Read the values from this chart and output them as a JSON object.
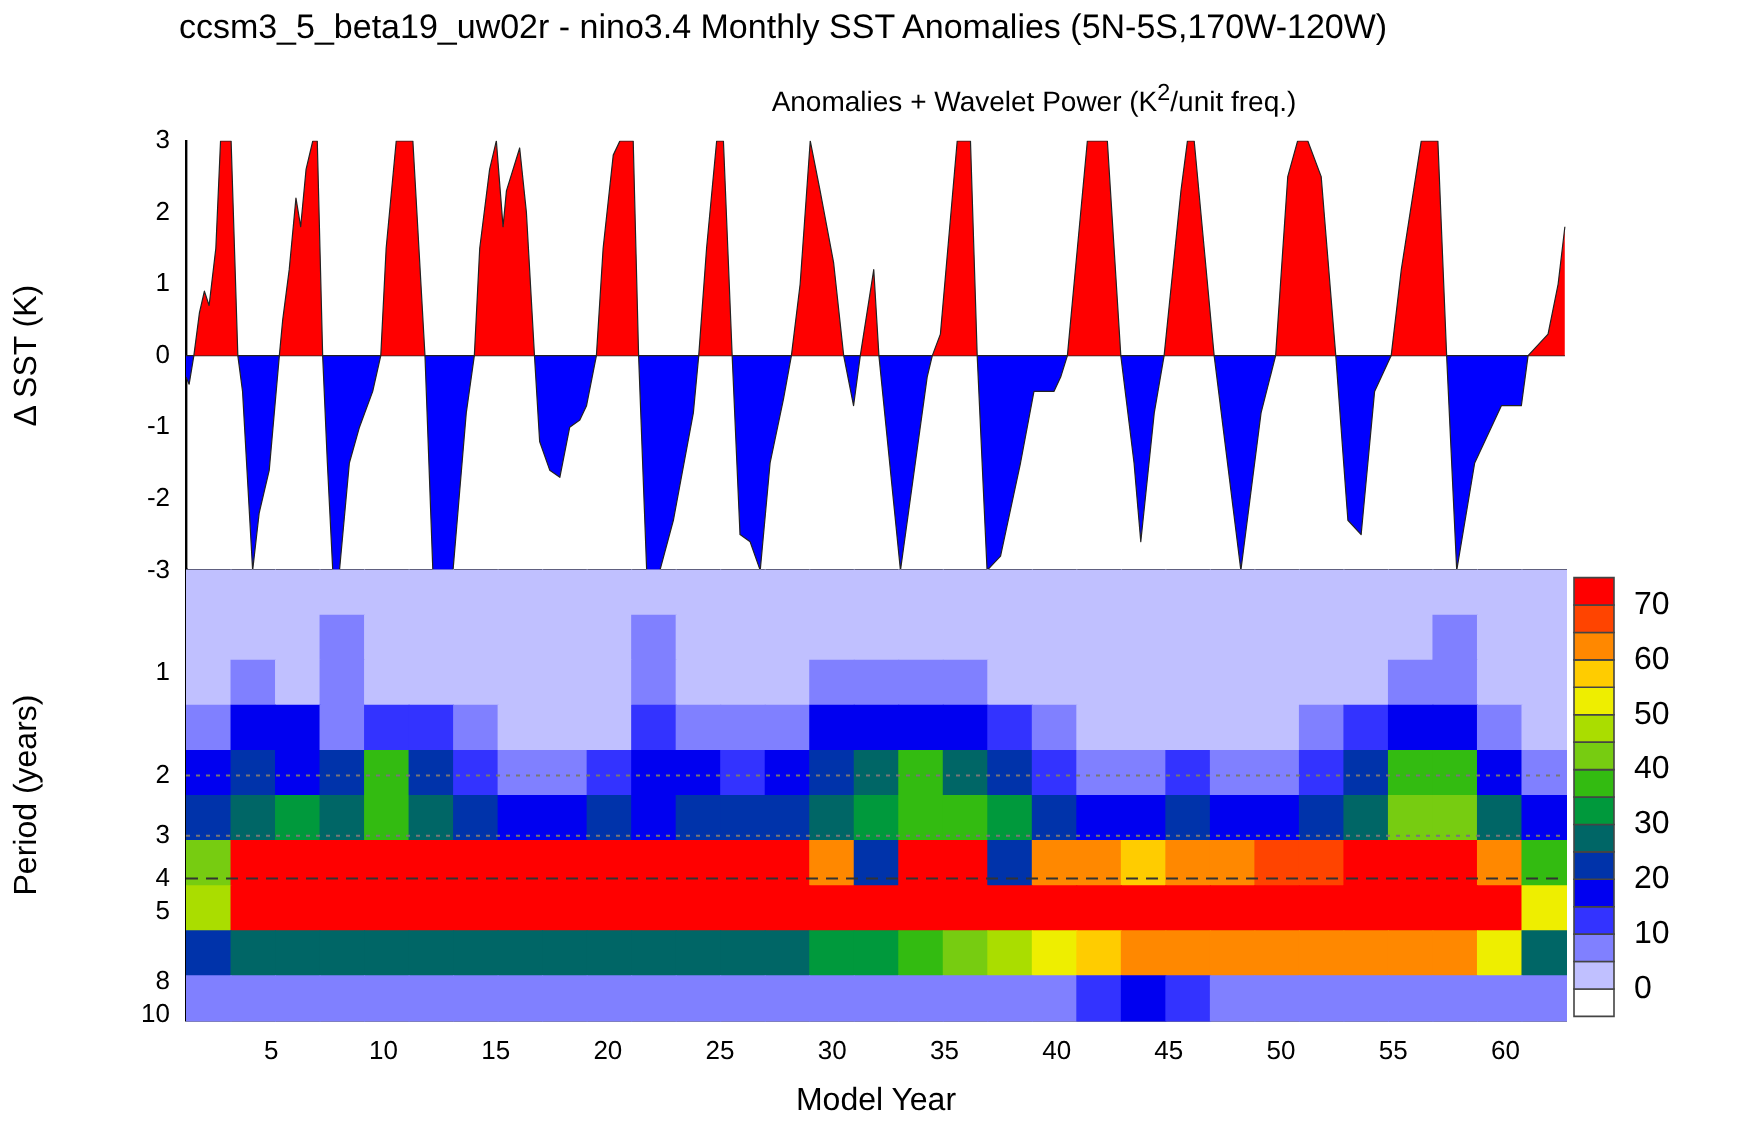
{
  "chart_data": [
    {
      "type": "area",
      "title": "ccsm3_5_beta19_uw02r - nino3.4 Monthly SST Anomalies (5N-5S,170W-120W)",
      "subtitle": "Anomalies + Wavelet Power (K$^{2}$/unit freq.)",
      "ylabel": "Δ SST (K)",
      "x": [
        1.2,
        1.34,
        1.55,
        1.8,
        2.02,
        2.23,
        2.53,
        2.74,
        3.21,
        3.51,
        3.72,
        4.17,
        4.46,
        4.91,
        5.36,
        5.51,
        5.8,
        6.1,
        6.31,
        6.55,
        6.85,
        7.05,
        7.29,
        7.5,
        7.74,
        8.04,
        8.48,
        8.93,
        9.52,
        9.88,
        10.12,
        10.57,
        11.31,
        11.85,
        12.2,
        13.1,
        13.69,
        14.05,
        14.29,
        14.73,
        15.03,
        15.33,
        15.48,
        16.07,
        16.37,
        16.73,
        16.96,
        17.41,
        17.86,
        18.3,
        18.75,
        19.05,
        19.49,
        19.79,
        20.24,
        20.54,
        21.13,
        21.37,
        21.73,
        22.32,
        22.92,
        23.81,
        24.05,
        24.4,
        24.85,
        25.15,
        25.54,
        25.89,
        26.34,
        26.79,
        27.23,
        27.83,
        28.18,
        28.57,
        29.02,
        29.46,
        30.06,
        30.51,
        30.95,
        31.25,
        31.85,
        32.08,
        33.04,
        34.23,
        34.46,
        34.82,
        35.57,
        36.16,
        36.46,
        36.9,
        37.5,
        38.39,
        38.99,
        39.88,
        40.18,
        40.48,
        41.37,
        42.26,
        42.86,
        43.45,
        43.75,
        44.35,
        44.79,
        45.54,
        45.83,
        46.13,
        47.02,
        48.21,
        49.11,
        49.76,
        50.3,
        50.74,
        51.19,
        51.79,
        52.44,
        52.98,
        53.57,
        54.17,
        54.91,
        55.36,
        56.25,
        56.99,
        57.38,
        57.83,
        58.63,
        59.82,
        60.71,
        61.01,
        61.31,
        61.9,
        62.35,
        62.65
      ],
      "series": [
        {
          "color": "#ff0000",
          "values": [
            0,
            0,
            0,
            0.6,
            0.9,
            0.7,
            1.5,
            3,
            3,
            0,
            0,
            0,
            0,
            0,
            0,
            0.5,
            1.2,
            2.2,
            1.8,
            2.6,
            3,
            3,
            0,
            0,
            0,
            0,
            0,
            0,
            0,
            0,
            1.5,
            3,
            3,
            0,
            0,
            0,
            0,
            0,
            1.5,
            2.6,
            3,
            1.8,
            2.3,
            2.9,
            2,
            0,
            0,
            0,
            0,
            0,
            0,
            0,
            0,
            1.5,
            2.8,
            3,
            3,
            0,
            0,
            0,
            0,
            0,
            0,
            1.5,
            3,
            3,
            0,
            0,
            0,
            0,
            0,
            0,
            0,
            1,
            3,
            2.3,
            1.3,
            0,
            0,
            0,
            1.2,
            0,
            0,
            0,
            0,
            0.3,
            3,
            3,
            0,
            0,
            0,
            0,
            0,
            0,
            0,
            0,
            3,
            3,
            0,
            0,
            0,
            0,
            0,
            2.3,
            3,
            3,
            0,
            0,
            0,
            0,
            2.5,
            3,
            3,
            2.5,
            0,
            0,
            0,
            0,
            0,
            1.2,
            3,
            3,
            0,
            0,
            0,
            0,
            0,
            0,
            0.1,
            0.3,
            1,
            1.8
          ]
        },
        {
          "color": "#0000ff",
          "values": [
            -0.3,
            -0.4,
            0,
            0,
            0,
            0,
            0,
            0,
            0,
            0,
            -0.5,
            -3,
            -2.2,
            -1.6,
            0,
            0,
            0,
            0,
            0,
            0,
            0,
            0,
            0,
            -1.5,
            -3,
            -3,
            -1.5,
            -1,
            -0.5,
            0,
            0,
            0,
            0,
            0,
            -3,
            -3,
            -0.8,
            0,
            0,
            0,
            0,
            0,
            0,
            0,
            0,
            0,
            -1.2,
            -1.6,
            -1.7,
            -1,
            -0.9,
            -0.7,
            0,
            0,
            0,
            0,
            0,
            0,
            -3,
            -3,
            -2.3,
            -0.8,
            0,
            0,
            0,
            0,
            0,
            -2.5,
            -2.6,
            -3,
            -1.5,
            -0.6,
            0,
            0,
            0,
            0,
            0,
            0,
            -0.7,
            0,
            0,
            0,
            -3,
            -0.3,
            0,
            0,
            0,
            0,
            0,
            -3,
            -2.8,
            -1.5,
            -0.5,
            -0.5,
            -0.3,
            0,
            0,
            0,
            0,
            -1.5,
            -2.6,
            -0.8,
            0,
            0,
            0,
            0,
            0,
            -3,
            -0.8,
            0,
            0,
            0,
            0,
            0,
            0,
            -2.3,
            -2.5,
            -0.5,
            0,
            0,
            0,
            0,
            0,
            -3,
            -1.5,
            -0.7,
            -0.7,
            0,
            0,
            0,
            0,
            0
          ]
        }
      ],
      "xlim": [
        1.2,
        62.7
      ],
      "xticks": [
        5,
        10,
        15,
        20,
        25,
        30,
        35,
        40,
        45,
        50,
        55,
        60
      ],
      "ylim": [
        -3,
        3
      ],
      "yticks": [
        -3,
        -2,
        -1,
        0,
        1,
        2,
        3
      ],
      "tick_labels": "y"
    },
    {
      "type": "heatmap",
      "xlabel": "Model Year",
      "ylabel": "Period (years)",
      "log": "y",
      "xlim": [
        1.2,
        62.7
      ],
      "xticks": [
        5,
        10,
        15,
        20,
        25,
        30,
        35,
        40,
        45,
        50,
        55,
        60
      ],
      "ylim": [
        10.4,
        0.5
      ],
      "yticks": [
        1,
        2,
        3,
        4,
        5,
        8,
        10
      ],
      "clim": [
        -5,
        75
      ],
      "cticks": [
        0,
        10,
        20,
        30,
        40,
        50,
        60,
        70
      ],
      "cells": [
        [
          3,
          3,
          3,
          3,
          3,
          3,
          3,
          3,
          3,
          3,
          3,
          3,
          3,
          3,
          3,
          3,
          3,
          3,
          3,
          3,
          3,
          3,
          3,
          3,
          3,
          3,
          3,
          3,
          3,
          3,
          3
        ],
        [
          3,
          3,
          3,
          8,
          3,
          3,
          3,
          3,
          3,
          3,
          8,
          3,
          3,
          3,
          3,
          3,
          3,
          3,
          3,
          3,
          3,
          3,
          3,
          3,
          3,
          3,
          3,
          3,
          8,
          3,
          3
        ],
        [
          3,
          8,
          3,
          8,
          3,
          3,
          3,
          3,
          3,
          3,
          8,
          3,
          3,
          3,
          8,
          8,
          8,
          8,
          3,
          3,
          3,
          3,
          3,
          3,
          3,
          3,
          3,
          8,
          8,
          3,
          3
        ],
        [
          8,
          17,
          17,
          8,
          12,
          12,
          8,
          3,
          3,
          3,
          12,
          8,
          8,
          8,
          17,
          17,
          17,
          17,
          12,
          8,
          3,
          3,
          3,
          3,
          3,
          8,
          12,
          17,
          17,
          8,
          3
        ],
        [
          17,
          22,
          17,
          22,
          37,
          22,
          12,
          8,
          8,
          12,
          17,
          17,
          12,
          17,
          22,
          28,
          37,
          28,
          22,
          12,
          8,
          8,
          12,
          8,
          8,
          12,
          22,
          37,
          37,
          17,
          8
        ],
        [
          22,
          28,
          32,
          28,
          37,
          28,
          22,
          17,
          17,
          22,
          17,
          22,
          22,
          22,
          28,
          32,
          37,
          37,
          32,
          22,
          17,
          17,
          22,
          17,
          17,
          22,
          28,
          42,
          42,
          28,
          17
        ],
        [
          42,
          75,
          75,
          75,
          75,
          75,
          75,
          75,
          75,
          75,
          75,
          75,
          75,
          75,
          62,
          22,
          75,
          75,
          22,
          62,
          62,
          57,
          62,
          62,
          67,
          67,
          72,
          72,
          72,
          62,
          37
        ],
        [
          47,
          75,
          75,
          75,
          75,
          75,
          75,
          75,
          75,
          75,
          75,
          75,
          75,
          75,
          75,
          75,
          75,
          75,
          75,
          75,
          75,
          75,
          75,
          75,
          75,
          75,
          75,
          75,
          75,
          75,
          52
        ],
        [
          22,
          28,
          28,
          28,
          28,
          28,
          28,
          28,
          28,
          28,
          28,
          28,
          28,
          28,
          32,
          32,
          37,
          42,
          47,
          52,
          57,
          62,
          62,
          62,
          62,
          62,
          62,
          62,
          62,
          52,
          28
        ],
        [
          8,
          8,
          8,
          8,
          8,
          8,
          8,
          8,
          8,
          8,
          8,
          8,
          8,
          8,
          8,
          8,
          8,
          8,
          8,
          8,
          12,
          17,
          12,
          8,
          8,
          8,
          8,
          8,
          8,
          8,
          8
        ]
      ],
      "ref_lines": [
        {
          "axis": "y",
          "value": 2,
          "color": "#777777",
          "line_style": "dotted"
        },
        {
          "axis": "y",
          "value": 3,
          "color": "#777777",
          "line_style": "dotted"
        },
        {
          "axis": "y",
          "value": 4,
          "color": "#333333",
          "line_style": "dashed"
        }
      ]
    }
  ]
}
